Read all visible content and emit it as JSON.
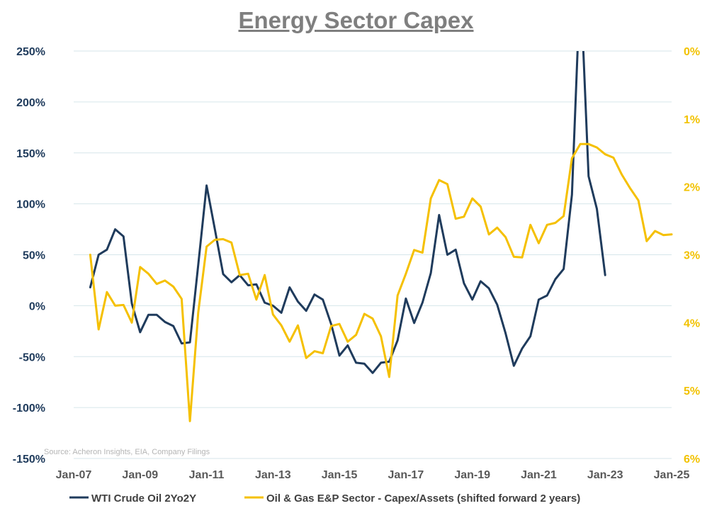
{
  "chart_data": {
    "type": "line",
    "title": "Energy Sector Capex",
    "source": "Source: Acheron Insights, EIA, Company Filings",
    "x_tick_labels": [
      "Jan-07",
      "Jan-09",
      "Jan-11",
      "Jan-13",
      "Jan-15",
      "Jan-17",
      "Jan-19",
      "Jan-21",
      "Jan-23",
      "Jan-25"
    ],
    "x_range_years": [
      2007.0,
      2025.0
    ],
    "y_left": {
      "ylim": [
        -150,
        250
      ],
      "ticks": [
        -150,
        -100,
        -50,
        0,
        50,
        100,
        150,
        200,
        250
      ],
      "tick_labels": [
        "-150%",
        "-100%",
        "-50%",
        "0%",
        "50%",
        "100%",
        "150%",
        "200%",
        "250%"
      ]
    },
    "y_right": {
      "ylim_inverted": [
        0,
        6
      ],
      "ticks": [
        0,
        1,
        2,
        3,
        4,
        5,
        6
      ],
      "tick_labels": [
        "0%",
        "1%",
        "2%",
        "3%",
        "4%",
        "5%",
        "6%"
      ]
    },
    "series": [
      {
        "name": "WTI Crude Oil 2Yo2Y",
        "color": "#1f3b5c",
        "axis": "left",
        "x": [
          2007.5,
          2007.75,
          2008.0,
          2008.25,
          2008.5,
          2008.75,
          2009.0,
          2009.25,
          2009.5,
          2009.75,
          2010.0,
          2010.25,
          2010.5,
          2010.75,
          2011.0,
          2011.25,
          2011.5,
          2011.75,
          2012.0,
          2012.25,
          2012.5,
          2012.75,
          2013.0,
          2013.25,
          2013.5,
          2013.75,
          2014.0,
          2014.25,
          2014.5,
          2014.75,
          2015.0,
          2015.25,
          2015.5,
          2015.75,
          2016.0,
          2016.25,
          2016.5,
          2016.75,
          2017.0,
          2017.25,
          2017.5,
          2017.75,
          2018.0,
          2018.25,
          2018.5,
          2018.75,
          2019.0,
          2019.25,
          2019.5,
          2019.75,
          2020.0,
          2020.25,
          2020.5,
          2020.75,
          2021.0,
          2021.25,
          2021.5,
          2021.75,
          2022.0,
          2022.18,
          2022.33,
          2022.5,
          2022.75,
          2023.0
        ],
        "values": [
          18,
          50,
          55,
          75,
          68,
          2,
          -26,
          -9,
          -9,
          -16,
          -20,
          -37,
          -36,
          40,
          118,
          75,
          31,
          23,
          30,
          20,
          21,
          3,
          0,
          -7,
          18,
          4,
          -5,
          11,
          6,
          -18,
          -49,
          -39,
          -56,
          -57,
          -66,
          -56,
          -55,
          -34,
          7,
          -17,
          3,
          32,
          89,
          50,
          55,
          22,
          6,
          24,
          17,
          1,
          -27,
          -59,
          -42,
          -30,
          6,
          10,
          26,
          36,
          109,
          260,
          260,
          127,
          95,
          30
        ]
      },
      {
        "name": "Oil & Gas E&P Sector - Capex/Assets (shifted forward 2 years)",
        "color": "#f5c000",
        "axis": "right",
        "x": [
          2007.5,
          2007.75,
          2008.0,
          2008.25,
          2008.5,
          2008.75,
          2009.0,
          2009.25,
          2009.5,
          2009.75,
          2010.0,
          2010.25,
          2010.5,
          2010.75,
          2011.0,
          2011.25,
          2011.5,
          2011.75,
          2012.0,
          2012.25,
          2012.5,
          2012.75,
          2013.0,
          2013.25,
          2013.5,
          2013.75,
          2014.0,
          2014.25,
          2014.5,
          2014.75,
          2015.0,
          2015.25,
          2015.5,
          2015.75,
          2016.0,
          2016.25,
          2016.5,
          2016.75,
          2017.0,
          2017.25,
          2017.5,
          2017.75,
          2018.0,
          2018.25,
          2018.5,
          2018.75,
          2019.0,
          2019.25,
          2019.5,
          2019.75,
          2020.0,
          2020.25,
          2020.5,
          2020.75,
          2021.0,
          2021.25,
          2021.5,
          2021.75,
          2022.0,
          2022.25,
          2022.5,
          2022.75,
          2023.0,
          2023.25,
          2023.5,
          2023.75,
          2024.0,
          2024.25,
          2024.5,
          2024.75,
          2025.0
        ],
        "values": [
          3.0,
          4.1,
          3.55,
          3.75,
          3.74,
          4.0,
          3.18,
          3.28,
          3.43,
          3.38,
          3.47,
          3.65,
          5.45,
          3.85,
          2.88,
          2.78,
          2.77,
          2.82,
          3.3,
          3.28,
          3.66,
          3.3,
          3.88,
          4.04,
          4.28,
          4.04,
          4.52,
          4.42,
          4.45,
          4.05,
          4.02,
          4.28,
          4.18,
          3.87,
          3.94,
          4.2,
          4.8,
          3.6,
          3.28,
          2.93,
          2.97,
          2.17,
          1.9,
          1.96,
          2.47,
          2.44,
          2.17,
          2.29,
          2.7,
          2.6,
          2.74,
          3.03,
          3.04,
          2.56,
          2.83,
          2.56,
          2.53,
          2.43,
          1.58,
          1.37,
          1.37,
          1.42,
          1.52,
          1.57,
          1.82,
          2.02,
          2.2,
          2.8,
          2.65,
          2.71,
          2.7
        ]
      }
    ],
    "legend_position": "bottom"
  }
}
